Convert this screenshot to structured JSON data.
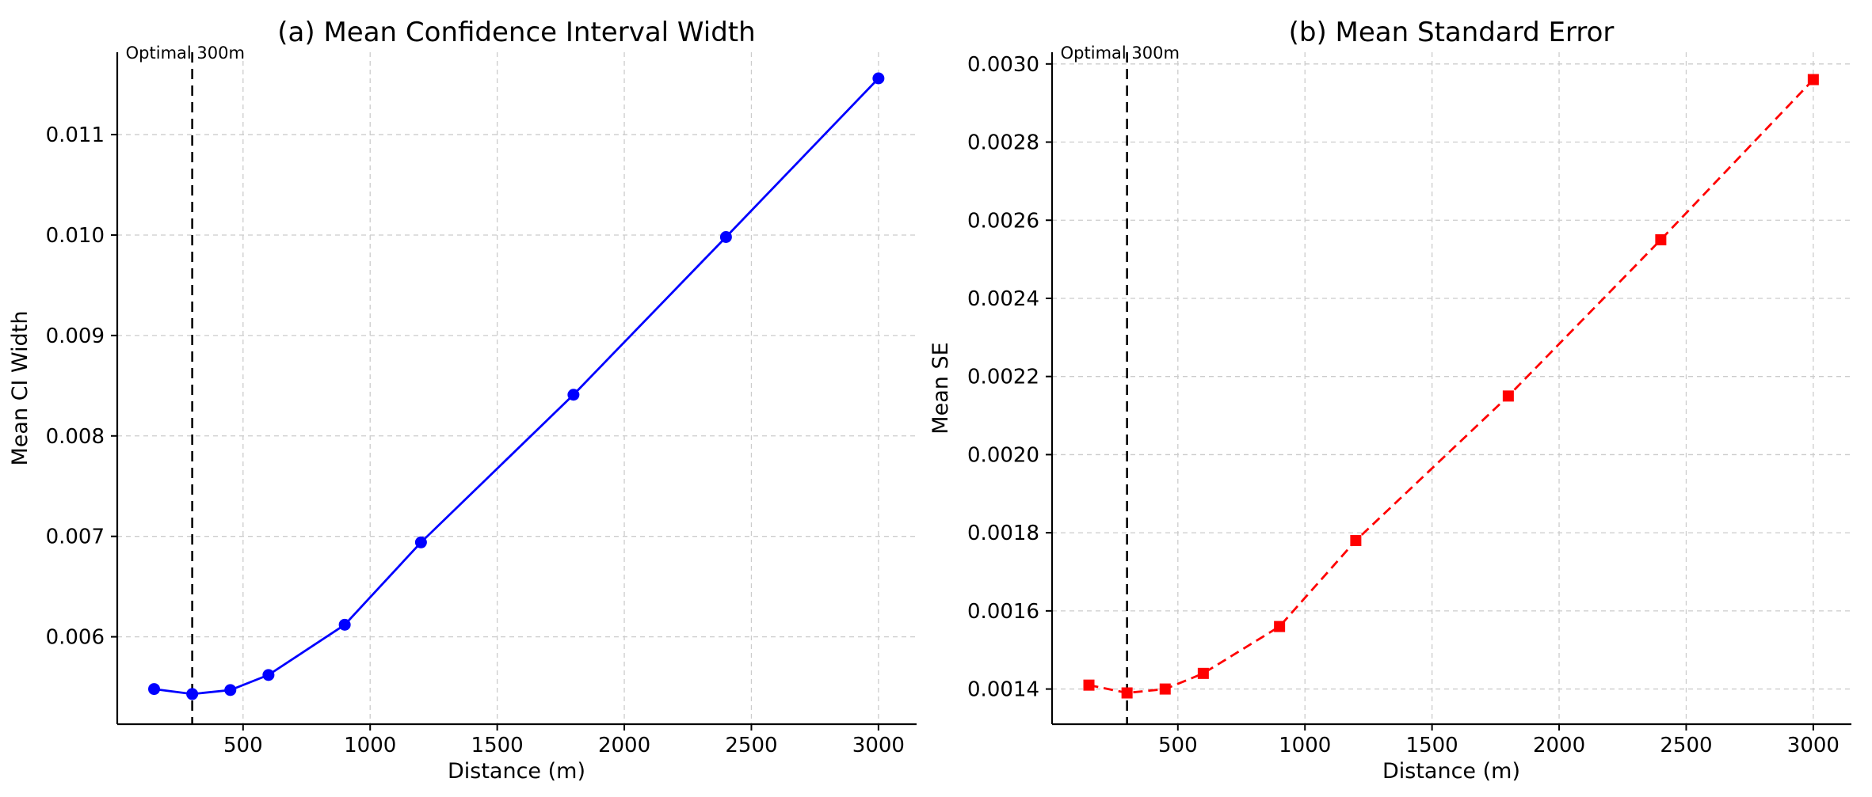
{
  "chart_data": [
    {
      "type": "line",
      "title": "(a) Mean Confidence Interval Width",
      "xlabel": "Distance (m)",
      "ylabel": "Mean CI Width",
      "xlim": [
        5,
        3150
      ],
      "ylim": [
        0.00513,
        0.01182
      ],
      "xticks": [
        500,
        1000,
        1500,
        2000,
        2500,
        3000
      ],
      "xtick_labels": [
        "500",
        "1000",
        "1500",
        "2000",
        "2500",
        "3000"
      ],
      "yticks": [
        0.006,
        0.007,
        0.008,
        0.009,
        0.01,
        0.011
      ],
      "ytick_labels": [
        "0.006",
        "0.007",
        "0.008",
        "0.009",
        "0.010",
        "0.011"
      ],
      "grid": true,
      "series": [
        {
          "color": "#0000ff",
          "line_style": "solid",
          "marker": "circle",
          "x": [
            150,
            300,
            450,
            600,
            900,
            1200,
            1800,
            2400,
            3000
          ],
          "y": [
            0.00548,
            0.00543,
            0.00547,
            0.00562,
            0.00612,
            0.00694,
            0.00841,
            0.00998,
            0.01156
          ]
        }
      ],
      "reference_line": {
        "x": 300,
        "label": "Optimal 300m",
        "line_style": "dashed",
        "color": "#000000"
      }
    },
    {
      "type": "line",
      "title": "(b) Mean Standard Error",
      "xlabel": "Distance (m)",
      "ylabel": "Mean SE",
      "xlim": [
        5,
        3150
      ],
      "ylim": [
        0.00131,
        0.00303
      ],
      "xticks": [
        500,
        1000,
        1500,
        2000,
        2500,
        3000
      ],
      "xtick_labels": [
        "500",
        "1000",
        "1500",
        "2000",
        "2500",
        "3000"
      ],
      "yticks": [
        0.0014,
        0.0016,
        0.0018,
        0.002,
        0.0022,
        0.0024,
        0.0026,
        0.0028,
        0.003
      ],
      "ytick_labels": [
        "0.0014",
        "0.0016",
        "0.0018",
        "0.0020",
        "0.0022",
        "0.0024",
        "0.0026",
        "0.0028",
        "0.0030"
      ],
      "grid": true,
      "series": [
        {
          "color": "#ff0000",
          "line_style": "dashed",
          "marker": "square",
          "x": [
            150,
            300,
            450,
            600,
            900,
            1200,
            1800,
            2400,
            3000
          ],
          "y": [
            0.00141,
            0.00139,
            0.0014,
            0.00144,
            0.00156,
            0.00178,
            0.00215,
            0.00255,
            0.00296
          ]
        }
      ],
      "reference_line": {
        "x": 300,
        "label": "Optimal 300m",
        "line_style": "dashed",
        "color": "#000000"
      }
    }
  ]
}
